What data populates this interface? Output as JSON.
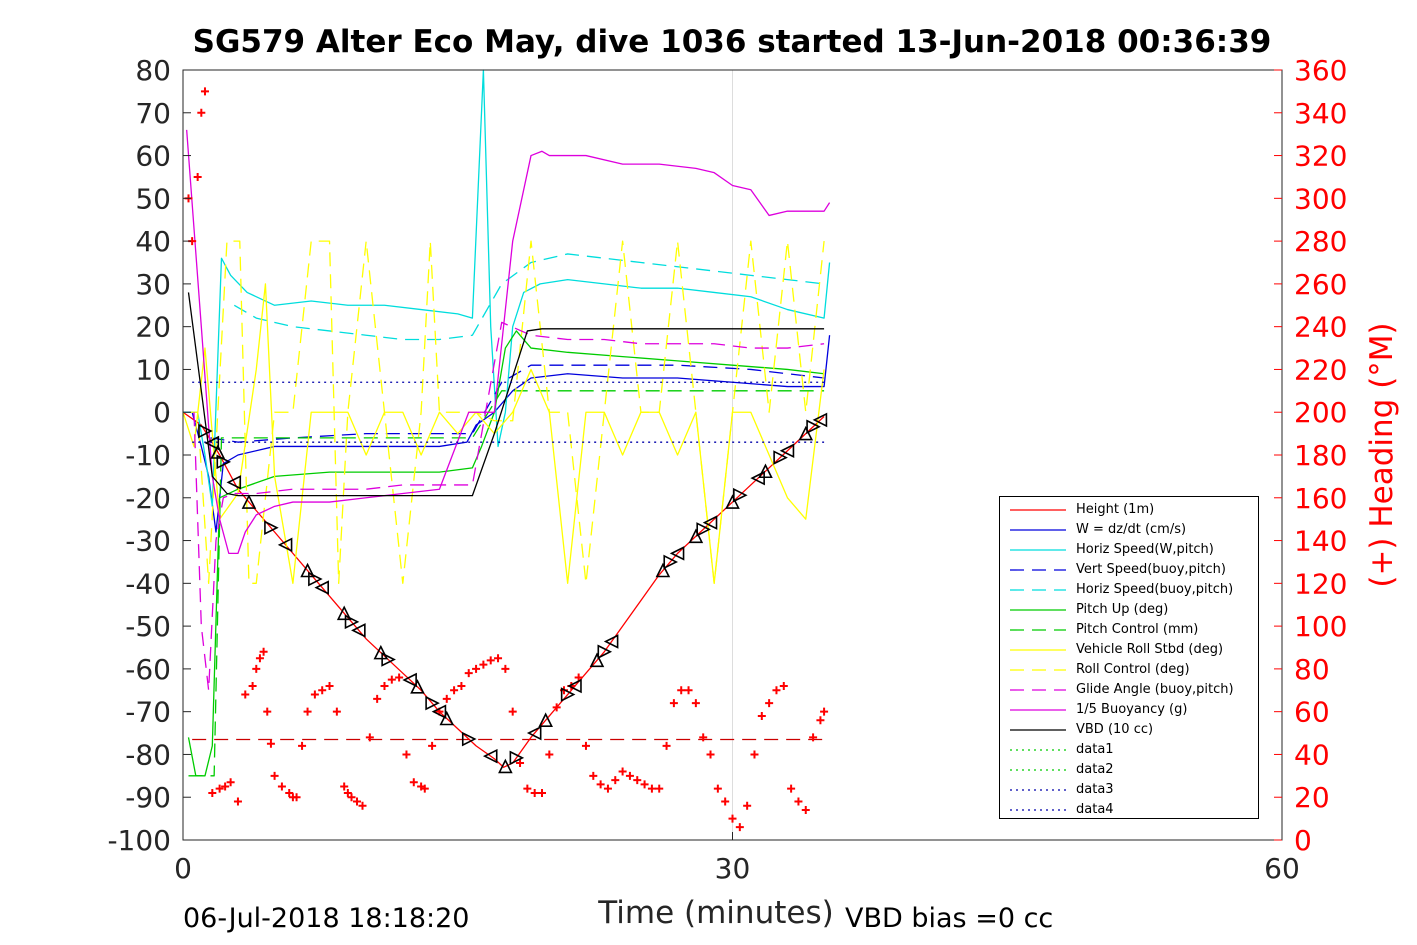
{
  "chart_data": {
    "type": "line",
    "title": "SG579 Alter Eco May, dive 1036 started 13-Jun-2018 00:36:39",
    "xlabel": "Time (minutes)",
    "ylabel": "",
    "y2label": "(+) Heading (°M)",
    "xlim": [
      0,
      60
    ],
    "ylim": [
      -100,
      80
    ],
    "y2lim": [
      0,
      360
    ],
    "xticks": [
      "0",
      "30",
      "60"
    ],
    "yticks": [
      "80",
      "70",
      "60",
      "50",
      "40",
      "30",
      "20",
      "10",
      "0",
      "-10",
      "-20",
      "-30",
      "-40",
      "-50",
      "-60",
      "-70",
      "-80",
      "-90",
      "-100"
    ],
    "y2ticks": [
      "360",
      "340",
      "320",
      "300",
      "280",
      "260",
      "240",
      "220",
      "200",
      "180",
      "160",
      "140",
      "120",
      "100",
      "80",
      "60",
      "40",
      "20",
      "0"
    ],
    "grid": "x-only",
    "legend_position": "bottom-right",
    "footer_left": "06-Jul-2018 18:18:20",
    "footer_right": "VBD bias =0 cc",
    "series": [
      {
        "name": "Height (1m)",
        "color": "#ff0000",
        "style": "solid",
        "x": [
          0,
          1,
          2,
          3,
          4,
          5,
          6,
          7,
          8,
          9,
          10,
          11,
          12,
          13,
          14,
          15,
          16,
          17,
          17.5,
          18,
          19,
          20,
          21,
          22,
          23,
          24,
          25,
          26,
          27,
          28,
          29,
          30,
          31,
          32,
          33,
          34,
          35
        ],
        "y": [
          0,
          -3,
          -10,
          -18,
          -23,
          -28,
          -33,
          -38,
          -43,
          -48,
          -53,
          -57,
          -61,
          -65,
          -70,
          -74,
          -78,
          -81,
          -83,
          -82,
          -76,
          -71,
          -66,
          -61,
          -56,
          -50,
          -44,
          -38,
          -33,
          -29,
          -25,
          -21,
          -17,
          -13,
          -9,
          -5,
          -1
        ]
      },
      {
        "name": "W = dz/dt (cm/s)",
        "color": "#0000dd",
        "style": "solid",
        "x": [
          0,
          0.5,
          1,
          1.4,
          1.8,
          2.2,
          3,
          5,
          8,
          11,
          14,
          15.5,
          16,
          17,
          18,
          19,
          21,
          24,
          27,
          30,
          33,
          35,
          35.3
        ],
        "y": [
          0,
          0,
          -8,
          -15,
          -28,
          -12,
          -10,
          -8,
          -8,
          -8,
          -8,
          -7,
          -3,
          0,
          5,
          8,
          9,
          8,
          8,
          7,
          6,
          6,
          18
        ]
      },
      {
        "name": "Horiz Speed(W,pitch)",
        "color": "#00dddd",
        "style": "solid",
        "x": [
          0,
          0.8,
          1.2,
          1.6,
          2.1,
          2.6,
          3.5,
          5,
          7,
          9,
          11,
          13,
          15,
          15.8,
          16.4,
          16.8,
          17.2,
          17.6,
          18,
          18.6,
          19.5,
          21,
          23,
          25,
          27,
          29,
          31,
          33,
          35,
          35.3
        ],
        "y": [
          0,
          0,
          -10,
          -22,
          36,
          32,
          28,
          25,
          26,
          25,
          25,
          24,
          23,
          22,
          80,
          20,
          -8,
          0,
          20,
          28,
          30,
          31,
          30,
          29,
          29,
          28,
          27,
          24,
          22,
          35
        ]
      },
      {
        "name": "Vert Speed(buoy,pitch)",
        "color": "#0000dd",
        "style": "dashed",
        "x": [
          1.5,
          3,
          6,
          10,
          14,
          15.8,
          17.4,
          19,
          23,
          27,
          31,
          35
        ],
        "y": [
          -6,
          -7,
          -6,
          -5,
          -5,
          -5,
          7,
          11,
          11,
          11,
          10,
          8
        ]
      },
      {
        "name": "Horiz Speed(buoy,pitch)",
        "color": "#00dddd",
        "style": "dashed",
        "x": [
          2.8,
          4,
          6,
          8,
          10,
          12,
          14,
          15.8,
          17.4,
          19,
          21,
          23,
          25,
          27,
          29,
          31,
          33,
          35
        ],
        "y": [
          25,
          22,
          20,
          19,
          18,
          17,
          17,
          18,
          30,
          35,
          37,
          36,
          35,
          34,
          33,
          32,
          31,
          30
        ]
      },
      {
        "name": "Pitch Up (deg)",
        "color": "#00cc00",
        "style": "solid",
        "x": [
          0.3,
          0.7,
          1.2,
          1.6,
          2,
          3,
          5,
          8,
          11,
          14,
          15.8,
          16.3,
          17,
          17.6,
          18.2,
          19,
          21,
          24,
          27,
          30,
          33,
          35
        ],
        "y": [
          -76,
          -85,
          -85,
          -78,
          -20,
          -18,
          -15,
          -14,
          -14,
          -14,
          -13,
          -8,
          0,
          15,
          19,
          15,
          14,
          13,
          12,
          11,
          10,
          9
        ]
      },
      {
        "name": "Pitch Control (mm)",
        "color": "#00cc00",
        "style": "dashed",
        "x": [
          0.3,
          0.8,
          1.3,
          1.7,
          2.1,
          3,
          6,
          10,
          14,
          15.8,
          17.4,
          18,
          21,
          25,
          30,
          35
        ],
        "y": [
          -85,
          -85,
          -85,
          -85,
          -6,
          -6,
          -6,
          -6,
          -6,
          -6,
          5,
          5,
          5,
          5,
          5,
          5
        ]
      },
      {
        "name": "Vehicle Roll Stbd (deg)",
        "color": "#ffff00",
        "style": "solid",
        "x": [
          0,
          0.6,
          1.2,
          2,
          3,
          4,
          4.5,
          5,
          6,
          7,
          8,
          9,
          10,
          11,
          12,
          13,
          14,
          15,
          16,
          17,
          18,
          19,
          20,
          21,
          22,
          23,
          24,
          25,
          26,
          27,
          28,
          29,
          30,
          31,
          32,
          33,
          34,
          35
        ],
        "y": [
          0,
          -8,
          15,
          -25,
          -19,
          10,
          30,
          -15,
          -40,
          0,
          0,
          0,
          -10,
          0,
          0,
          -10,
          0,
          -5,
          0,
          -5,
          0,
          10,
          0,
          -40,
          0,
          0,
          -10,
          0,
          0,
          -10,
          0,
          -40,
          0,
          0,
          -10,
          -20,
          -25,
          10
        ]
      },
      {
        "name": "Roll Control (deg)",
        "color": "#ffff00",
        "style": "dashed",
        "x": [
          0.4,
          0.8,
          1.4,
          2.4,
          3.1,
          3.6,
          4,
          5,
          6,
          7,
          8,
          8.5,
          9,
          10,
          11,
          12,
          13,
          13.5,
          14,
          15,
          16,
          17,
          18,
          19,
          20,
          21,
          22,
          23,
          24,
          25,
          26,
          27,
          28,
          29,
          30,
          31,
          32,
          33,
          34,
          35
        ],
        "y": [
          0,
          0,
          -40,
          40,
          40,
          -40,
          -40,
          0,
          0,
          40,
          40,
          -40,
          0,
          40,
          0,
          -40,
          0,
          40,
          0,
          0,
          0,
          -2,
          -2,
          40,
          0,
          0,
          -40,
          0,
          40,
          0,
          0,
          40,
          0,
          -40,
          0,
          40,
          0,
          40,
          0,
          40
        ]
      },
      {
        "name": "Glide Angle (buoy,pitch)",
        "color": "#dd00dd",
        "style": "dashed",
        "x": [
          0.6,
          1,
          1.4,
          1.8,
          2.2,
          2.8,
          4,
          6,
          8,
          10,
          12,
          14,
          15.8,
          17.4,
          19,
          21,
          23,
          25,
          27,
          29,
          31,
          33,
          35
        ],
        "y": [
          0,
          -50,
          -65,
          -30,
          -20,
          -19,
          -19,
          -18,
          -18,
          -18,
          -17,
          -17,
          -17,
          21,
          18,
          17,
          17,
          16,
          16,
          16,
          15,
          15,
          16
        ]
      },
      {
        "name": "1/5 Buoyancy (g)",
        "color": "#dd00dd",
        "style": "solid",
        "x": [
          0.2,
          1,
          1.6,
          2,
          2.5,
          3,
          3.4,
          4,
          5,
          6,
          8,
          10,
          12,
          14,
          15.6,
          16,
          17,
          18,
          19,
          19.6,
          20,
          22,
          24,
          26,
          28,
          29,
          30,
          31,
          32,
          33,
          34,
          35,
          35.3
        ],
        "y": [
          66,
          20,
          -15,
          -25,
          -33,
          -33,
          -28,
          -24,
          -22,
          -21,
          -21,
          -20,
          -19,
          -18,
          0,
          0,
          0,
          40,
          60,
          61,
          60,
          60,
          58,
          58,
          57,
          56,
          53,
          52,
          46,
          47,
          47,
          47,
          49
        ]
      },
      {
        "name": "VBD (10 cc)",
        "color": "#000000",
        "style": "solid",
        "x": [
          0.3,
          1,
          1.6,
          2.4,
          3,
          5,
          10,
          15,
          15.8,
          17,
          18.8,
          19.6,
          25,
          30,
          35
        ],
        "y": [
          28,
          5,
          -15,
          -19,
          -19.5,
          -19.5,
          -19.5,
          -19.5,
          -19.5,
          -5,
          19,
          19.5,
          19.5,
          19.5,
          19.5
        ]
      },
      {
        "name": "data1",
        "color": "#00cc00",
        "style": "dotted",
        "x": [],
        "y": []
      },
      {
        "name": "data2",
        "color": "#00cc00",
        "style": "dotted",
        "x": [],
        "y": []
      },
      {
        "name": "data3",
        "color": "#0000aa",
        "style": "dotted",
        "x": [
          0.5,
          35
        ],
        "y": [
          7,
          7
        ]
      },
      {
        "name": "data4",
        "color": "#0000aa",
        "style": "dotted",
        "x": [
          0.5,
          35
        ],
        "y": [
          -7,
          -7
        ]
      }
    ],
    "reference_lines": [
      {
        "color": "#cc0000",
        "style": "dashed",
        "x": [
          0.5,
          35
        ],
        "y": [
          -76.5,
          -76.5
        ]
      }
    ],
    "heading_points": {
      "color": "#ff0000",
      "marker": "+",
      "axis": "right",
      "x": [
        0.3,
        0.5,
        0.8,
        1.0,
        1.2,
        1.6,
        2.0,
        2.3,
        2.6,
        3.0,
        3.4,
        3.8,
        4.0,
        4.2,
        4.4,
        4.6,
        4.8,
        5.0,
        5.4,
        5.8,
        6.0,
        6.2,
        6.5,
        6.8,
        7.2,
        7.6,
        8.0,
        8.4,
        8.8,
        9.0,
        9.2,
        9.5,
        9.8,
        10.2,
        10.6,
        11.0,
        11.4,
        11.8,
        12.2,
        12.6,
        13.0,
        13.2,
        13.6,
        14.0,
        14.4,
        14.8,
        15.2,
        15.6,
        16.0,
        16.4,
        16.8,
        17.2,
        17.6,
        18.0,
        18.4,
        18.8,
        19.2,
        19.6,
        20.0,
        20.4,
        20.8,
        21.2,
        21.6,
        22.0,
        22.4,
        22.8,
        23.2,
        23.6,
        24.0,
        24.4,
        24.8,
        25.2,
        25.6,
        26.0,
        26.4,
        26.8,
        27.2,
        27.6,
        28.0,
        28.4,
        28.8,
        29.2,
        29.6,
        30.0,
        30.4,
        30.8,
        31.2,
        31.6,
        32.0,
        32.4,
        32.8,
        33.2,
        33.6,
        34.0,
        34.4,
        34.8,
        35.0
      ],
      "y": [
        300,
        280,
        310,
        340,
        350,
        22,
        24,
        25,
        27,
        18,
        68,
        72,
        80,
        85,
        88,
        60,
        45,
        30,
        25,
        22,
        20,
        20,
        44,
        60,
        68,
        70,
        72,
        60,
        25,
        22,
        20,
        18,
        16,
        48,
        66,
        72,
        75,
        76,
        40,
        27,
        25,
        24,
        44,
        60,
        66,
        70,
        72,
        78,
        80,
        82,
        84,
        85,
        80,
        60,
        36,
        24,
        22,
        22,
        40,
        62,
        70,
        72,
        76,
        44,
        30,
        26,
        24,
        28,
        32,
        30,
        28,
        26,
        24,
        24,
        44,
        64,
        70,
        70,
        64,
        48,
        40,
        24,
        18,
        10,
        6,
        16,
        40,
        58,
        64,
        70,
        72,
        24,
        18,
        14,
        48,
        56,
        60
      ]
    },
    "markers": {
      "color": "#000000",
      "marker": "triangle",
      "on_series": "Height (1m)",
      "x": [
        1.2,
        1.6,
        1.9,
        2.2,
        2.8,
        3.6,
        4.8,
        5.6,
        6.8,
        7.2,
        7.6,
        8.8,
        9.2,
        9.6,
        10.8,
        11.2,
        12.4,
        12.8,
        13.6,
        14.0,
        14.4,
        15.6,
        16.8,
        17.6,
        18.2,
        19.2,
        19.8,
        21.0,
        21.4,
        22.6,
        23.0,
        23.4,
        26.2,
        26.6,
        27.0,
        28.0,
        28.4,
        28.8,
        30.0,
        30.4,
        31.4,
        31.8,
        32.6,
        33.0,
        34.0,
        34.4,
        34.8
      ]
    }
  }
}
